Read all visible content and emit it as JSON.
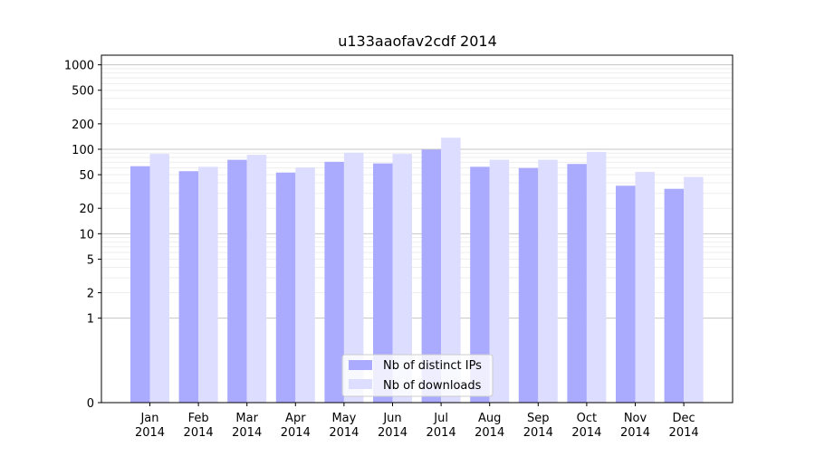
{
  "chart_data": {
    "type": "bar",
    "title": "u133aaofav2cdf 2014",
    "xlabel": "",
    "ylabel": "",
    "yscale": "symlog",
    "ylim": [
      0,
      1300
    ],
    "grid": "horizontal",
    "legend_position": "bottom-center",
    "categories": [
      [
        "Jan",
        "2014"
      ],
      [
        "Feb",
        "2014"
      ],
      [
        "Mar",
        "2014"
      ],
      [
        "Apr",
        "2014"
      ],
      [
        "May",
        "2014"
      ],
      [
        "Jun",
        "2014"
      ],
      [
        "Jul",
        "2014"
      ],
      [
        "Aug",
        "2014"
      ],
      [
        "Sep",
        "2014"
      ],
      [
        "Oct",
        "2014"
      ],
      [
        "Nov",
        "2014"
      ],
      [
        "Dec",
        "2014"
      ]
    ],
    "y_ticks": [
      0,
      1,
      2,
      5,
      10,
      20,
      50,
      100,
      200,
      500,
      1000
    ],
    "series": [
      {
        "name": "Nb of distinct IPs",
        "color": "#aaaaff",
        "values": [
          63,
          55,
          75,
          53,
          71,
          68,
          99,
          62,
          60,
          67,
          37,
          34
        ]
      },
      {
        "name": "Nb of downloads",
        "color": "#ddddff",
        "values": [
          88,
          62,
          86,
          61,
          91,
          88,
          137,
          75,
          75,
          93,
          54,
          47
        ]
      }
    ]
  }
}
